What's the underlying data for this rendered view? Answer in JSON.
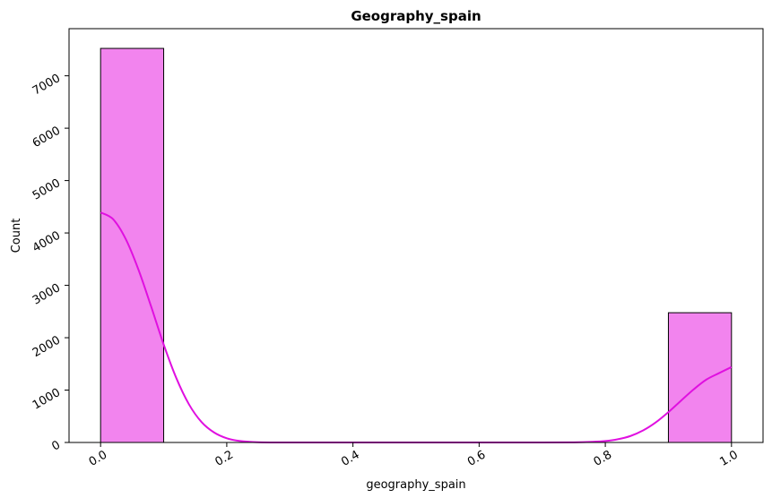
{
  "chart_data": {
    "type": "histogram",
    "title": "Geography_spain",
    "xlabel": "geography_spain",
    "ylabel": "Count",
    "xlim": [
      -0.05,
      1.05
    ],
    "ylim": [
      0,
      7900
    ],
    "x_ticks": [
      0.0,
      0.2,
      0.4,
      0.6,
      0.8,
      1.0
    ],
    "x_tick_labels": [
      "0.0",
      "0.2",
      "0.4",
      "0.6",
      "0.8",
      "1.0"
    ],
    "y_ticks": [
      0,
      1000,
      2000,
      3000,
      4000,
      5000,
      6000,
      7000
    ],
    "y_tick_labels": [
      "0",
      "1000",
      "2000",
      "3000",
      "4000",
      "5000",
      "6000",
      "7000"
    ],
    "tick_label_rotation": 30,
    "grid": false,
    "bins": [
      {
        "x0": 0.0,
        "x1": 0.1,
        "count": 7523
      },
      {
        "x0": 0.9,
        "x1": 1.0,
        "count": 2477
      }
    ],
    "kde": {
      "x": [
        0.0,
        0.02,
        0.04,
        0.06,
        0.08,
        0.1,
        0.12,
        0.14,
        0.16,
        0.18,
        0.2,
        0.22,
        0.25,
        0.3,
        0.4,
        0.5,
        0.6,
        0.7,
        0.75,
        0.78,
        0.8,
        0.82,
        0.84,
        0.86,
        0.88,
        0.9,
        0.92,
        0.94,
        0.96,
        0.98,
        1.0
      ],
      "y": [
        4390,
        4260,
        3880,
        3300,
        2600,
        1870,
        1230,
        730,
        390,
        190,
        80,
        30,
        5,
        0,
        0,
        0,
        0,
        0,
        3,
        12,
        27,
        62,
        124,
        230,
        383,
        579,
        798,
        1013,
        1199,
        1322,
        1440
      ]
    },
    "colors": {
      "bar_fill": "#f284ee",
      "bar_edge": "#000000",
      "kde_line": "#e010e0"
    }
  }
}
